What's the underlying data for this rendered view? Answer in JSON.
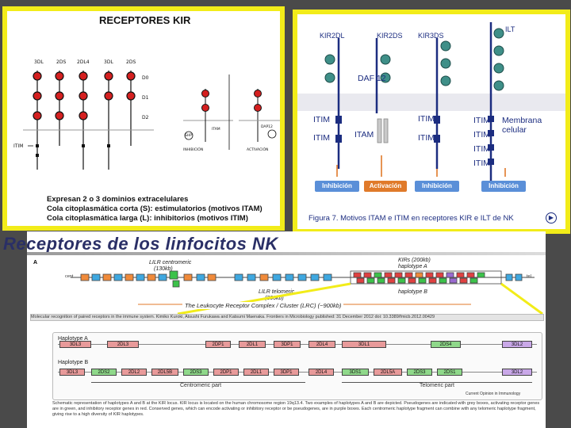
{
  "left": {
    "title": "RECEPTORES KIR",
    "receptor_names": [
      "3DL",
      "2DS",
      "2DL4",
      "3DL",
      "2DS"
    ],
    "domain_labels": [
      "D0",
      "D1",
      "D2"
    ],
    "itim_label": "ITIM",
    "caption": [
      "Expresan 2 o 3 dominios extracelulares",
      "Cola citoplasmática corta (S): estimulatorios (motivos ITAM)",
      "Cola citoplasmática larga (L): inhibitorios (motivos ITIM)"
    ],
    "mini_labels": [
      "ITAM",
      "DAP12",
      "SHP",
      "INHIBICIÓN",
      "ACTIVACIÓN"
    ]
  },
  "right": {
    "receptors": [
      "KIR2DL",
      "KIR2DS",
      "KIR3DS",
      "ILT"
    ],
    "daf": "DAF 12",
    "itim": "ITIM",
    "itam": "ITAM",
    "membrana": [
      "Membrana",
      "celular"
    ],
    "outcomes": [
      "Inhibición",
      "Activación",
      "Inhibición",
      "Inhibición"
    ],
    "caption": "Figura 7. Motivos ITAM e ITIM en receptores KIR e ILT de NK",
    "colors": {
      "inhibit": "#5a8fd8",
      "activate": "#e07a2a",
      "navy": "#1c2d80"
    }
  },
  "bottom": {
    "title": "Receptores de los linfocitos NK",
    "panel_letter": "A",
    "lilr_centromeric": "LILR centromeric",
    "lilr_size": "(130kb)",
    "kirs": "KIRs (200kb)",
    "haplotype_a_top": "haplotype A",
    "haplotype_b_top": "haplotype B",
    "lilr_telomeric": "LILR telomeric",
    "lilr_tel_size": "(200kb)",
    "lrc": "The Leukocyte Receptor Complex / Cluster (LRC) (~900kb)",
    "cent": "cent",
    "tel": "tel",
    "reference": "Molecular recognition of paired receptors in the immune system. Kimiko Kuroki, Atsushi Furukawa and Katsumi Maenaka. Frontiers in Microbiology published: 31 December 2012 doi: 10.3389/fmicb.2012.00429",
    "haplotype_a": "Haplotype A",
    "haplotype_b": "Haplotype B",
    "genes_a": [
      "3DL3",
      "2DL3",
      "2DP1",
      "2DL1",
      "3DP1",
      "2DL4",
      "3DL1",
      "2DS4",
      "3DL2"
    ],
    "genes_b": [
      "3DL3",
      "2DS2",
      "2DL2",
      "2DL5B",
      "2DS3",
      "2DP1",
      "2DL1",
      "3DP1",
      "2DL4",
      "3DS1",
      "2DL5A",
      "2DS3",
      "2DS1",
      "3DL2"
    ],
    "centromeric_part": "Centromeric part",
    "telomeric_part": "Telomeric part",
    "current_opinion": "Current Opinion in Immunology",
    "schematic": "Schematic representation of haplotypes A and B at the KIR locus. KIR locus is located on the human chromosome region 19q13.4. Two examples of haplotypes A and B are depicted. Pseudogenes are indicated with grey boxes, activating receptor genes are in green, and inhibitory receptor genes in red. Conserved genes, which can encode activating or inhibitory receptor or be pseudogenes, are in purple boxes. Each centromeric haplotype fragment can combine with any telomeric haplotype fragment, giving rise to a high diversity of KIR haplotypes.",
    "top_genes": [
      "LAIR2",
      "LILRA3",
      "LILRA5",
      "LILRA4",
      "LILRP1",
      "LAIR1",
      "KIR",
      "NKp46",
      "FCAR"
    ]
  }
}
